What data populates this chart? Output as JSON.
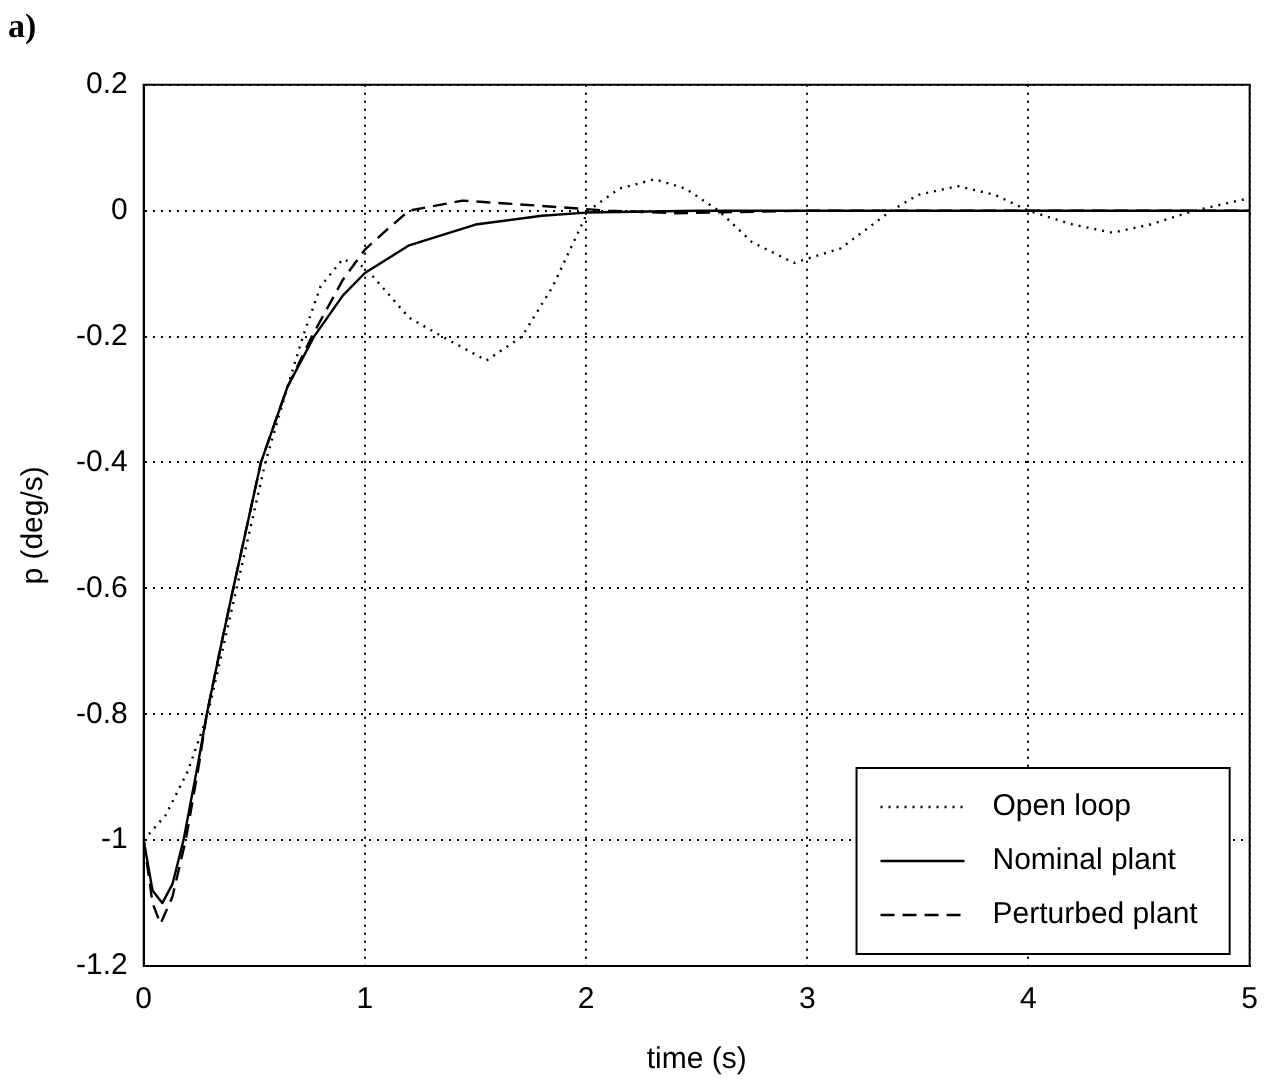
{
  "chart_data": {
    "type": "line",
    "title": "a)",
    "xlabel": "time (s)",
    "ylabel": "p (deg/s)",
    "xlim": [
      0,
      5
    ],
    "xticks": [
      0,
      1,
      2,
      3,
      4,
      5
    ],
    "ylim": [
      -1.2,
      0.2
    ],
    "yticks": [
      -1.2,
      -1,
      -0.8,
      -0.6,
      -0.4,
      -0.2,
      0,
      0.2
    ],
    "grid": true,
    "legend": "bottom right",
    "marker": "none",
    "series": [
      {
        "name": "Open loop",
        "color": "#000000",
        "line_style": "dotted",
        "x": [
          0,
          0.1,
          0.2,
          0.29,
          0.42,
          0.55,
          0.65,
          0.72,
          0.8,
          0.9,
          1,
          1.1,
          1.2,
          1.35,
          1.55,
          1.71,
          1.85,
          2.01,
          2.15,
          2.31,
          2.45,
          2.6,
          2.75,
          2.94,
          3.15,
          3.38,
          3.5,
          3.68,
          3.85,
          4.0,
          4.2,
          4.38,
          4.55,
          4.75,
          4.9,
          5
        ],
        "values": [
          -1,
          -0.96,
          -0.89,
          -0.8,
          -0.6,
          -0.4,
          -0.28,
          -0.2,
          -0.12,
          -0.077,
          -0.09,
          -0.13,
          -0.17,
          -0.2,
          -0.238,
          -0.2,
          -0.12,
          0,
          0.035,
          0.05,
          0.035,
          0,
          -0.05,
          -0.083,
          -0.06,
          0,
          0.025,
          0.039,
          0.025,
          0,
          -0.022,
          -0.035,
          -0.022,
          0,
          0.012,
          0.02
        ]
      },
      {
        "name": "Nominal plant",
        "color": "#000000",
        "line_style": "solid",
        "x": [
          0,
          0.04,
          0.084,
          0.13,
          0.18,
          0.25,
          0.285,
          0.35,
          0.405,
          0.53,
          0.65,
          0.77,
          0.9,
          1,
          1.2,
          1.5,
          1.8,
          2.0,
          2.5,
          3,
          4,
          5
        ],
        "values": [
          -1,
          -1.08,
          -1.1,
          -1.07,
          -1,
          -0.87,
          -0.8,
          -0.69,
          -0.6,
          -0.4,
          -0.28,
          -0.2,
          -0.135,
          -0.099,
          -0.055,
          -0.022,
          -0.008,
          -0.003,
          0,
          0,
          0,
          0
        ]
      },
      {
        "name": "Perturbed plant",
        "color": "#000000",
        "line_style": "dashed",
        "x": [
          0,
          0.04,
          0.076,
          0.13,
          0.19,
          0.25,
          0.285,
          0.35,
          0.405,
          0.53,
          0.65,
          0.76,
          0.9,
          1,
          1.1,
          1.2,
          1.44,
          1.7,
          2.1,
          2.4,
          3,
          4,
          5
        ],
        "values": [
          -1,
          -1.1,
          -1.133,
          -1.09,
          -1,
          -0.88,
          -0.8,
          -0.69,
          -0.6,
          -0.4,
          -0.28,
          -0.2,
          -0.11,
          -0.062,
          -0.03,
          0,
          0.016,
          0.01,
          0,
          -0.004,
          0,
          0,
          0
        ]
      }
    ]
  }
}
